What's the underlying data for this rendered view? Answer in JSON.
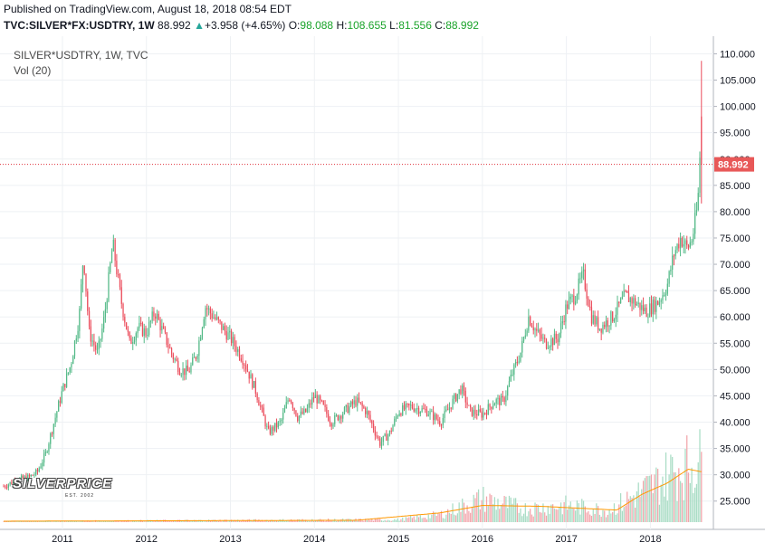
{
  "header": {
    "published": "Published on TradingView.com, August 18, 2018 08:54 EDT",
    "symbol": "TVC:SILVER*FX:USDTRY, 1W",
    "last": "88.992",
    "arrow": "▲",
    "change": "+3.958 (+4.65%)",
    "o_label": "O:",
    "o_value": "98.088",
    "h_label": "H:",
    "h_value": "108.655",
    "l_label": "L:",
    "l_value": "81.556",
    "c_label": "C:",
    "c_value": "88.992"
  },
  "legend": {
    "title": "SILVER*USDTRY, 1W, TVC",
    "volume": "Vol (20)"
  },
  "watermark": {
    "text": "SILVERPRICE",
    "est": "EST. 2002"
  },
  "colors": {
    "up": "#53b987",
    "down": "#eb4d5c",
    "vol_up": "#a8dcc4",
    "vol_down": "#f2a5ab",
    "vol_ma": "#ff9800",
    "grid": "#eef1f4",
    "price_line": "#e0323c"
  },
  "chart_data": {
    "type": "candlestick",
    "title": "SILVER*USDTRY, 1W, TVC",
    "y_axis": {
      "position": "right",
      "range": [
        21,
        113
      ],
      "ticks": [
        "110.000",
        "105.000",
        "100.000",
        "95.000",
        "90.000",
        "85.000",
        "80.000",
        "75.000",
        "70.000",
        "65.000",
        "60.000",
        "55.000",
        "50.000",
        "45.000",
        "40.000",
        "35.000",
        "30.000",
        "25.000"
      ]
    },
    "x_axis": {
      "ticks": [
        "2011",
        "2012",
        "2013",
        "2014",
        "2015",
        "2016",
        "2017",
        "2018"
      ],
      "range": [
        2010.3,
        2018.75
      ]
    },
    "current_price": 88.992,
    "current_price_label": "88.992",
    "price_path": [
      [
        2010.3,
        27.8
      ],
      [
        2010.45,
        29.0
      ],
      [
        2010.6,
        29.5
      ],
      [
        2010.7,
        30.5
      ],
      [
        2010.8,
        34.0
      ],
      [
        2010.9,
        40.0
      ],
      [
        2011.0,
        46.0
      ],
      [
        2011.1,
        51.0
      ],
      [
        2011.2,
        60.0
      ],
      [
        2011.25,
        72.0
      ],
      [
        2011.32,
        57.0
      ],
      [
        2011.42,
        53.0
      ],
      [
        2011.5,
        60.0
      ],
      [
        2011.6,
        74.0
      ],
      [
        2011.7,
        63.0
      ],
      [
        2011.8,
        55.0
      ],
      [
        2011.9,
        58.0
      ],
      [
        2012.0,
        57.0
      ],
      [
        2012.1,
        61.0
      ],
      [
        2012.2,
        57.0
      ],
      [
        2012.3,
        53.0
      ],
      [
        2012.4,
        50.0
      ],
      [
        2012.5,
        49.5
      ],
      [
        2012.6,
        53.0
      ],
      [
        2012.7,
        62.0
      ],
      [
        2012.8,
        60.0
      ],
      [
        2012.9,
        58.0
      ],
      [
        2013.0,
        56.0
      ],
      [
        2013.15,
        52.0
      ],
      [
        2013.3,
        46.0
      ],
      [
        2013.45,
        38.0
      ],
      [
        2013.6,
        40.0
      ],
      [
        2013.7,
        45.0
      ],
      [
        2013.8,
        41.0
      ],
      [
        2013.9,
        42.0
      ],
      [
        2014.0,
        45.0
      ],
      [
        2014.1,
        43.0
      ],
      [
        2014.2,
        40.0
      ],
      [
        2014.35,
        42.0
      ],
      [
        2014.5,
        44.0
      ],
      [
        2014.62,
        42.0
      ],
      [
        2014.78,
        36.0
      ],
      [
        2014.9,
        38.0
      ],
      [
        2015.0,
        42.0
      ],
      [
        2015.15,
        43.0
      ],
      [
        2015.35,
        42.0
      ],
      [
        2015.5,
        40.0
      ],
      [
        2015.65,
        44.0
      ],
      [
        2015.75,
        46.5
      ],
      [
        2015.85,
        42.0
      ],
      [
        2016.0,
        41.5
      ],
      [
        2016.15,
        44.0
      ],
      [
        2016.25,
        44.0
      ],
      [
        2016.35,
        49.0
      ],
      [
        2016.45,
        53.0
      ],
      [
        2016.55,
        60.0
      ],
      [
        2016.65,
        57.0
      ],
      [
        2016.75,
        55.0
      ],
      [
        2016.9,
        56.0
      ],
      [
        2017.0,
        62.0
      ],
      [
        2017.1,
        64.0
      ],
      [
        2017.2,
        68.0
      ],
      [
        2017.3,
        60.0
      ],
      [
        2017.4,
        58.0
      ],
      [
        2017.55,
        60.0
      ],
      [
        2017.7,
        64.0
      ],
      [
        2017.8,
        63.0
      ],
      [
        2017.95,
        61.0
      ],
      [
        2018.1,
        63.0
      ],
      [
        2018.2,
        66.0
      ],
      [
        2018.28,
        72.0
      ],
      [
        2018.36,
        75.0
      ],
      [
        2018.44,
        73.0
      ],
      [
        2018.5,
        75.0
      ],
      [
        2018.55,
        80.0
      ],
      [
        2018.58,
        85.0
      ],
      [
        2018.6,
        98.0
      ],
      [
        2018.62,
        88.992
      ]
    ],
    "volume": {
      "name": "Vol (20)",
      "note": "relative scale, 0-1",
      "x": [
        2010.3,
        2015.0,
        2015.5,
        2016.0,
        2016.5,
        2017.0,
        2017.5,
        2018.0,
        2018.3,
        2018.62
      ],
      "level": [
        0.01,
        0.03,
        0.09,
        0.28,
        0.16,
        0.2,
        0.14,
        0.42,
        0.63,
        0.73
      ]
    },
    "volume_ma": {
      "name": "Vol (20) MA",
      "x": [
        2010.3,
        2014.5,
        2015.5,
        2016.0,
        2016.7,
        2017.6,
        2017.9,
        2018.2,
        2018.45,
        2018.62
      ],
      "level": [
        0.01,
        0.02,
        0.1,
        0.18,
        0.17,
        0.13,
        0.3,
        0.42,
        0.57,
        0.54
      ]
    }
  }
}
